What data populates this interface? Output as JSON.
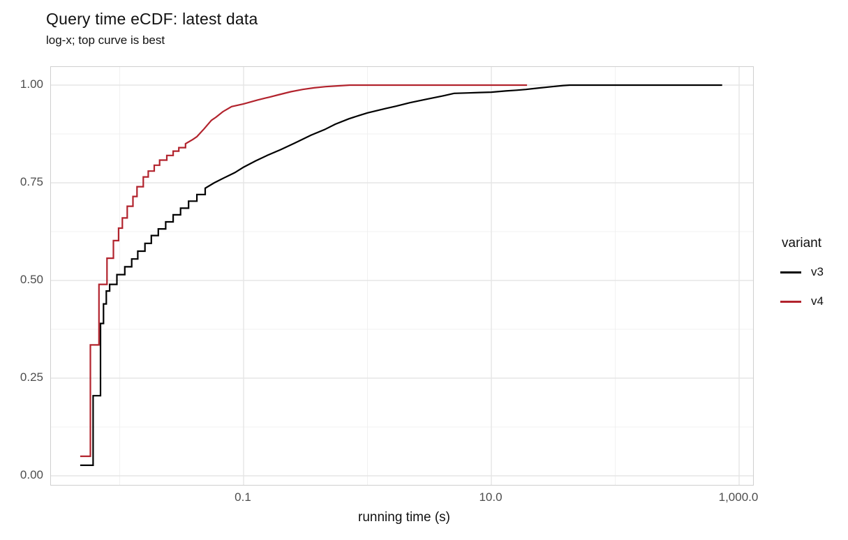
{
  "title": "Query time eCDF: latest data",
  "subtitle": "log-x; top curve is best",
  "chart_data": {
    "type": "line",
    "subtype": "ecdf-step",
    "title": "Query time eCDF: latest data",
    "subtitle": "log-x; top curve is best",
    "xlabel": "running time (s)",
    "ylabel": "",
    "x_scale": "log10",
    "x_domain": [
      0.00275,
      1400
    ],
    "y_domain": [
      -0.025,
      1.046
    ],
    "grid": true,
    "x_ticks": [
      {
        "v": 0.1,
        "label": "0.1"
      },
      {
        "v": 10,
        "label": "10.0"
      },
      {
        "v": 1000,
        "label": "1,000.0"
      }
    ],
    "x_minor_ticks": [
      0.01,
      1,
      100
    ],
    "y_ticks": [
      {
        "v": 0.0,
        "label": "0.00"
      },
      {
        "v": 0.25,
        "label": "0.25"
      },
      {
        "v": 0.5,
        "label": "0.50"
      },
      {
        "v": 0.75,
        "label": "0.75"
      },
      {
        "v": 1.0,
        "label": "1.00"
      }
    ],
    "y_minor_ticks": [
      0.125,
      0.375,
      0.625,
      0.875
    ],
    "legend_position": "right",
    "legend_title": "variant",
    "series": [
      {
        "name": "v3",
        "color": "#000000",
        "points": [
          [
            0.0048,
            0.027
          ],
          [
            0.0061,
            0.027
          ],
          [
            0.0061,
            0.205
          ],
          [
            0.007,
            0.205
          ],
          [
            0.007,
            0.39
          ],
          [
            0.0074,
            0.39
          ],
          [
            0.0074,
            0.44
          ],
          [
            0.0078,
            0.44
          ],
          [
            0.0078,
            0.473
          ],
          [
            0.0083,
            0.473
          ],
          [
            0.0083,
            0.49
          ],
          [
            0.0095,
            0.49
          ],
          [
            0.0095,
            0.515
          ],
          [
            0.011,
            0.515
          ],
          [
            0.011,
            0.535
          ],
          [
            0.0125,
            0.535
          ],
          [
            0.0125,
            0.555
          ],
          [
            0.014,
            0.555
          ],
          [
            0.014,
            0.575
          ],
          [
            0.016,
            0.575
          ],
          [
            0.016,
            0.595
          ],
          [
            0.018,
            0.595
          ],
          [
            0.018,
            0.615
          ],
          [
            0.0205,
            0.615
          ],
          [
            0.0205,
            0.632
          ],
          [
            0.0235,
            0.632
          ],
          [
            0.0235,
            0.65
          ],
          [
            0.027,
            0.65
          ],
          [
            0.027,
            0.668
          ],
          [
            0.031,
            0.668
          ],
          [
            0.031,
            0.685
          ],
          [
            0.036,
            0.685
          ],
          [
            0.036,
            0.703
          ],
          [
            0.042,
            0.703
          ],
          [
            0.042,
            0.72
          ],
          [
            0.049,
            0.72
          ],
          [
            0.049,
            0.736
          ],
          [
            0.058,
            0.75
          ],
          [
            0.07,
            0.763
          ],
          [
            0.085,
            0.776
          ],
          [
            0.1,
            0.79
          ],
          [
            0.125,
            0.806
          ],
          [
            0.155,
            0.82
          ],
          [
            0.2,
            0.835
          ],
          [
            0.26,
            0.852
          ],
          [
            0.35,
            0.872
          ],
          [
            0.45,
            0.886
          ],
          [
            0.55,
            0.9
          ],
          [
            0.71,
            0.914
          ],
          [
            0.85,
            0.922
          ],
          [
            1.0,
            0.929
          ],
          [
            1.4,
            0.94
          ],
          [
            1.7,
            0.946
          ],
          [
            2.2,
            0.955
          ],
          [
            3.0,
            0.964
          ],
          [
            4.0,
            0.972
          ],
          [
            5.0,
            0.979
          ],
          [
            6.5,
            0.98
          ],
          [
            8.0,
            0.981
          ],
          [
            10.0,
            0.982
          ],
          [
            13.0,
            0.985
          ],
          [
            16.0,
            0.987
          ],
          [
            19.0,
            0.989
          ],
          [
            25.0,
            0.993
          ],
          [
            31.0,
            0.996
          ],
          [
            38.0,
            0.999
          ],
          [
            43.0,
            1.0
          ],
          [
            730.0,
            1.0
          ]
        ]
      },
      {
        "name": "v4",
        "color": "#B2232D",
        "points": [
          [
            0.0048,
            0.05
          ],
          [
            0.0058,
            0.05
          ],
          [
            0.0058,
            0.335
          ],
          [
            0.0068,
            0.335
          ],
          [
            0.0068,
            0.49
          ],
          [
            0.0079,
            0.49
          ],
          [
            0.0079,
            0.557
          ],
          [
            0.0089,
            0.557
          ],
          [
            0.0089,
            0.602
          ],
          [
            0.0098,
            0.602
          ],
          [
            0.0098,
            0.634
          ],
          [
            0.0105,
            0.634
          ],
          [
            0.0105,
            0.66
          ],
          [
            0.0115,
            0.66
          ],
          [
            0.0115,
            0.69
          ],
          [
            0.0128,
            0.69
          ],
          [
            0.0128,
            0.715
          ],
          [
            0.0138,
            0.715
          ],
          [
            0.0138,
            0.74
          ],
          [
            0.0155,
            0.74
          ],
          [
            0.0155,
            0.765
          ],
          [
            0.017,
            0.765
          ],
          [
            0.017,
            0.78
          ],
          [
            0.019,
            0.78
          ],
          [
            0.019,
            0.795
          ],
          [
            0.021,
            0.795
          ],
          [
            0.021,
            0.808
          ],
          [
            0.024,
            0.808
          ],
          [
            0.024,
            0.82
          ],
          [
            0.027,
            0.82
          ],
          [
            0.027,
            0.831
          ],
          [
            0.03,
            0.831
          ],
          [
            0.03,
            0.84
          ],
          [
            0.034,
            0.84
          ],
          [
            0.034,
            0.85
          ],
          [
            0.039,
            0.861
          ],
          [
            0.042,
            0.868
          ],
          [
            0.048,
            0.888
          ],
          [
            0.055,
            0.91
          ],
          [
            0.06,
            0.918
          ],
          [
            0.068,
            0.932
          ],
          [
            0.08,
            0.945
          ],
          [
            0.1,
            0.952
          ],
          [
            0.13,
            0.962
          ],
          [
            0.16,
            0.969
          ],
          [
            0.19,
            0.975
          ],
          [
            0.24,
            0.983
          ],
          [
            0.3,
            0.989
          ],
          [
            0.37,
            0.993
          ],
          [
            0.46,
            0.996
          ],
          [
            0.57,
            0.998
          ],
          [
            0.72,
            1.0
          ],
          [
            19.4,
            1.0
          ]
        ]
      }
    ]
  },
  "legend": {
    "title": "variant",
    "items": [
      {
        "label": "v3",
        "color": "#000000"
      },
      {
        "label": "v4",
        "color": "#B2232D"
      }
    ]
  },
  "colors": {
    "background": "#ffffff",
    "panel_border": "#cfcfcf",
    "grid_major": "#e5e5e5",
    "grid_minor": "#f0f0f0",
    "tick_text": "#4d4d4d",
    "text": "#111111",
    "series_v3": "#000000",
    "series_v4": "#B2232D"
  }
}
